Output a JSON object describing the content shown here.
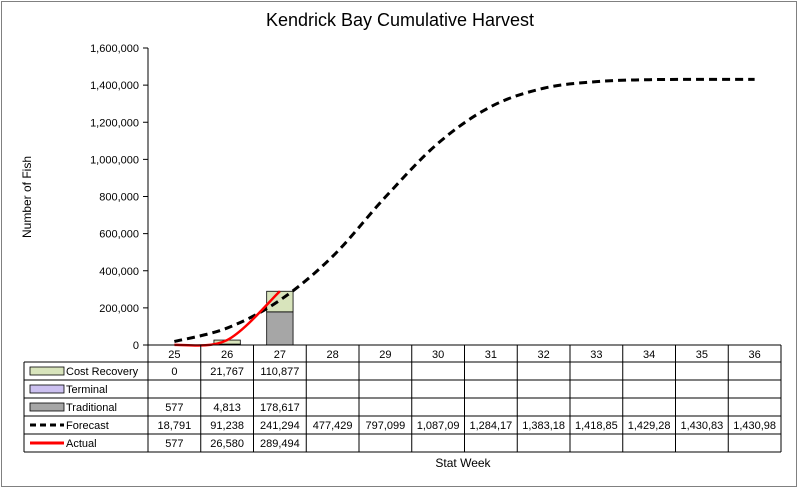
{
  "chart_data": {
    "type": "bar",
    "title": "Kendrick Bay Cumulative Harvest",
    "ylabel": "Number of Fish",
    "xlabel": "Stat Week",
    "ylim": [
      0,
      1600000
    ],
    "yticks": [
      "0",
      "200,000",
      "400,000",
      "600,000",
      "800,000",
      "1,000,000",
      "1,200,000",
      "1,400,000",
      "1,600,000"
    ],
    "grid": false,
    "categories": [
      "25",
      "26",
      "27",
      "28",
      "29",
      "30",
      "31",
      "32",
      "33",
      "34",
      "35",
      "36"
    ],
    "series": [
      {
        "name": "Cost Recovery",
        "kind": "stacked-bar",
        "color": "#d8e4bc",
        "values": [
          0,
          21767,
          110877,
          null,
          null,
          null,
          null,
          null,
          null,
          null,
          null,
          null
        ],
        "labels": [
          "0",
          "21,767",
          "110,877",
          "",
          "",
          "",
          "",
          "",
          "",
          "",
          "",
          ""
        ]
      },
      {
        "name": "Terminal",
        "kind": "stacked-bar",
        "color": "#ccc0f0",
        "values": [
          null,
          null,
          null,
          null,
          null,
          null,
          null,
          null,
          null,
          null,
          null,
          null
        ],
        "labels": [
          "",
          "",
          "",
          "",
          "",
          "",
          "",
          "",
          "",
          "",
          "",
          ""
        ]
      },
      {
        "name": "Traditional",
        "kind": "stacked-bar",
        "color": "#a6a6a6",
        "values": [
          577,
          4813,
          178617,
          null,
          null,
          null,
          null,
          null,
          null,
          null,
          null,
          null
        ],
        "labels": [
          "577",
          "4,813",
          "178,617",
          "",
          "",
          "",
          "",
          "",
          "",
          "",
          "",
          ""
        ]
      },
      {
        "name": "Forecast",
        "kind": "dashed-line",
        "color": "#000000",
        "values": [
          18791,
          91238,
          241294,
          477429,
          797099,
          1087090,
          1284170,
          1383180,
          1418850,
          1429280,
          1430830,
          1430980
        ],
        "labels": [
          "18,791",
          "91,238",
          "241,294",
          "477,429",
          "797,099",
          "1,087,09",
          "1,284,17",
          "1,383,18",
          "1,418,85",
          "1,429,28",
          "1,430,83",
          "1,430,98"
        ]
      },
      {
        "name": "Actual",
        "kind": "line",
        "color": "#ff0000",
        "values": [
          577,
          26580,
          289494,
          null,
          null,
          null,
          null,
          null,
          null,
          null,
          null,
          null
        ],
        "labels": [
          "577",
          "26,580",
          "289,494",
          "",
          "",
          "",
          "",
          "",
          "",
          "",
          "",
          ""
        ]
      }
    ]
  }
}
